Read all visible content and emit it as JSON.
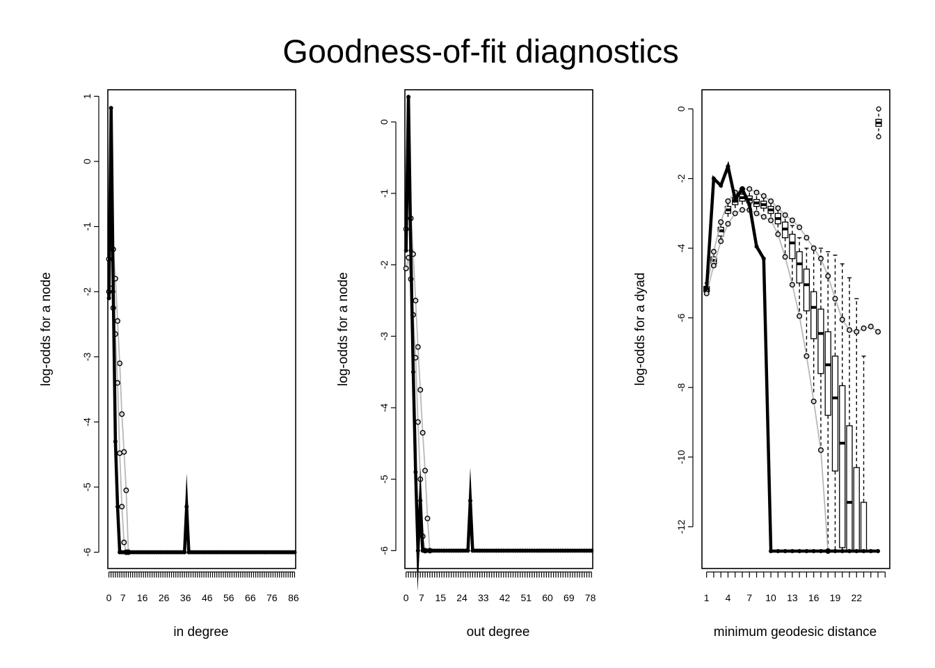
{
  "title": "Goodness-of-fit diagnostics",
  "chart_data": [
    {
      "type": "line",
      "xlabel": "in degree",
      "ylabel": "log-odds for a node",
      "xlim": [
        -0.5,
        86.5
      ],
      "ylim": [
        -6.25,
        1.1
      ],
      "yticks": [
        1,
        0,
        -1,
        -2,
        -3,
        -4,
        -5,
        -6
      ],
      "xticklabels": [
        "0",
        "7",
        "16",
        "26",
        "36",
        "46",
        "56",
        "66",
        "76",
        "86"
      ],
      "xticks_at": [
        0,
        6.5,
        15.5,
        25.5,
        35.5,
        45.5,
        55.5,
        65.5,
        75.5,
        85.5
      ],
      "observed": {
        "x": [
          0,
          1,
          2,
          3,
          4,
          5,
          6,
          7,
          8,
          9,
          10,
          11,
          12,
          13,
          14,
          15,
          16,
          17,
          18,
          19,
          20,
          21,
          22,
          23,
          24,
          25,
          26,
          27,
          28,
          29,
          30,
          31,
          32,
          33,
          34,
          35,
          36,
          37,
          38,
          39,
          40,
          41,
          42,
          43,
          44,
          45,
          46,
          47,
          48,
          49,
          50,
          51,
          52,
          53,
          54,
          55,
          56,
          57,
          58,
          59,
          60,
          61,
          62,
          63,
          64,
          65,
          66,
          67,
          68,
          69,
          70,
          71,
          72,
          73,
          74,
          75,
          76,
          77,
          78,
          79,
          80,
          81,
          82,
          83,
          84,
          85,
          86
        ],
        "y": [
          -2.1,
          0.82,
          -2.0,
          -4.3,
          -5.3,
          -6,
          -6,
          -6,
          -6,
          -6,
          -6,
          -6,
          -6,
          -6,
          -6,
          -6,
          -6,
          -6,
          -6,
          -6,
          -6,
          -6,
          -6,
          -6,
          -6,
          -6,
          -6,
          -6,
          -6,
          -6,
          -6,
          -6,
          -6,
          -6,
          -6,
          -6,
          -5.3,
          -6,
          -6,
          -6,
          -6,
          -6,
          -6,
          -6,
          -6,
          -6,
          -6,
          -6,
          -6,
          -6,
          -6,
          -6,
          -6,
          -6,
          -6,
          -6,
          -6,
          -6,
          -6,
          -6,
          -6,
          -6,
          -6,
          -6,
          -6,
          -6,
          -6,
          -6,
          -6,
          -6,
          -6,
          -6,
          -6,
          -6,
          -6,
          -6,
          -6,
          -6,
          -6,
          -6,
          -6,
          -6,
          -6,
          -6,
          -6,
          -6,
          -6
        ]
      },
      "simulated_upper": {
        "x": [
          0,
          1,
          2,
          3,
          4,
          5,
          6,
          7,
          8,
          9
        ],
        "y": [
          -1.5,
          -1.0,
          -1.35,
          -1.8,
          -2.45,
          -3.1,
          -3.88,
          -4.46,
          -5.05,
          -6
        ]
      },
      "simulated_lower": {
        "x": [
          0,
          1,
          2,
          3,
          4,
          5,
          6,
          7,
          8
        ],
        "y": [
          -2.0,
          -1.95,
          -2.25,
          -2.65,
          -3.4,
          -4.48,
          -5.3,
          -5.85,
          -6
        ]
      }
    },
    {
      "type": "line",
      "xlabel": "out degree",
      "ylabel": "log-odds for a node",
      "xlim": [
        -0.5,
        78.5
      ],
      "ylim": [
        -6.25,
        0.45
      ],
      "yticks": [
        0,
        -1,
        -2,
        -3,
        -4,
        -5,
        -6
      ],
      "xticklabels": [
        "0",
        "7",
        "15",
        "24",
        "33",
        "42",
        "51",
        "60",
        "69",
        "78"
      ],
      "xticks_at": [
        0,
        6.5,
        14.5,
        23.5,
        32.5,
        41.5,
        50.5,
        59.5,
        68.5,
        77.5
      ],
      "observed": {
        "x": [
          0,
          1,
          2,
          3,
          4,
          5,
          6,
          7,
          8,
          9,
          10,
          11,
          12,
          13,
          14,
          15,
          16,
          17,
          18,
          19,
          20,
          21,
          22,
          23,
          24,
          25,
          26,
          27,
          28,
          29,
          30,
          31,
          32,
          33,
          34,
          35,
          36,
          37,
          38,
          39,
          40,
          41,
          42,
          43,
          44,
          45,
          46,
          47,
          48,
          49,
          50,
          51,
          52,
          53,
          54,
          55,
          56,
          57,
          58,
          59,
          60,
          61,
          62,
          63,
          64,
          65,
          66,
          67,
          68,
          69,
          70,
          71,
          72,
          73,
          74,
          75,
          76,
          77,
          78
        ],
        "y": [
          -1.8,
          0.35,
          -1.8,
          -3.5,
          -4.9,
          -6,
          -5.3,
          -6,
          -6,
          -6,
          -6,
          -6,
          -6,
          -6,
          -6,
          -6,
          -6,
          -6,
          -6,
          -6,
          -6,
          -6,
          -6,
          -6,
          -6,
          -6,
          -6,
          -5.3,
          -6,
          -6,
          -6,
          -6,
          -6,
          -6,
          -6,
          -6,
          -6,
          -6,
          -6,
          -6,
          -6,
          -6,
          -6,
          -6,
          -6,
          -6,
          -6,
          -6,
          -6,
          -6,
          -6,
          -6,
          -6,
          -6,
          -6,
          -6,
          -6,
          -6,
          -6,
          -6,
          -6,
          -6,
          -6,
          -6,
          -6,
          -6,
          -6,
          -6,
          -6,
          -6,
          -6,
          -6,
          -6,
          -6,
          -6,
          -6,
          -6,
          -6,
          -6
        ]
      },
      "simulated_upper": {
        "x": [
          0,
          1,
          2,
          3,
          4,
          5,
          6,
          7,
          8,
          9,
          10
        ],
        "y": [
          -1.5,
          -1.0,
          -1.35,
          -1.85,
          -2.5,
          -3.15,
          -3.75,
          -4.35,
          -4.88,
          -5.55,
          -6
        ]
      },
      "simulated_lower": {
        "x": [
          0,
          1,
          2,
          3,
          4,
          5,
          6,
          7,
          8
        ],
        "y": [
          -2.05,
          -1.9,
          -2.2,
          -2.7,
          -3.3,
          -4.2,
          -5.0,
          -5.8,
          -6
        ]
      }
    },
    {
      "type": "line",
      "xlabel": "minimum geodesic distance",
      "ylabel": "log-odds for a dyad",
      "xlim": [
        0.35,
        26.65
      ],
      "ylim": [
        -13.2,
        0.55
      ],
      "yticks": [
        0,
        -2,
        -4,
        -6,
        -8,
        -10,
        -12
      ],
      "xticklabels": [
        "1",
        "4",
        "7",
        "10",
        "13",
        "16",
        "19",
        "22"
      ],
      "xticks_at": [
        1,
        4,
        7,
        10,
        13,
        16,
        19,
        22
      ],
      "observed": {
        "x": [
          1,
          2,
          3,
          4,
          5,
          6,
          7,
          8,
          9,
          10,
          11,
          12,
          13,
          14,
          15,
          16,
          17,
          18,
          19,
          20,
          21,
          22,
          23,
          24,
          25
        ],
        "y": [
          -5.15,
          -2.0,
          -2.2,
          -1.65,
          -2.6,
          -2.3,
          -2.75,
          -3.95,
          -4.3,
          -12.7,
          -12.7,
          -12.7,
          -12.7,
          -12.7,
          -12.7,
          -12.7,
          -12.7,
          -12.7,
          -12.7,
          -12.7,
          -12.7,
          -12.7,
          -12.7,
          -12.7,
          -12.7
        ]
      },
      "boxes": {
        "x": [
          1,
          2,
          3,
          4,
          5,
          6,
          7,
          8,
          9,
          10,
          11,
          12,
          13,
          14,
          15,
          16,
          17,
          18,
          19,
          20,
          21,
          22,
          23,
          24
        ],
        "median": [
          -5.2,
          -4.35,
          -3.5,
          -2.9,
          -2.65,
          -2.55,
          -2.6,
          -2.7,
          -2.75,
          -2.9,
          -3.15,
          -3.45,
          -3.85,
          -4.45,
          -5.05,
          -5.7,
          -6.45,
          -7.35,
          -8.3,
          -9.6,
          -11.3,
          -12.7,
          -12.7,
          -12.7
        ],
        "q1": [
          -5.25,
          -4.45,
          -3.65,
          -3.0,
          -2.75,
          -2.65,
          -2.7,
          -2.8,
          -2.85,
          -3.0,
          -3.3,
          -3.7,
          -4.3,
          -5.0,
          -5.8,
          -6.6,
          -7.6,
          -8.8,
          -10.4,
          -12.6,
          -12.7,
          -12.7,
          -12.7,
          -12.7
        ],
        "q3": [
          -5.1,
          -4.25,
          -3.4,
          -2.8,
          -2.55,
          -2.45,
          -2.5,
          -2.6,
          -2.65,
          -2.8,
          -3.0,
          -3.25,
          -3.6,
          -4.1,
          -4.6,
          -5.25,
          -5.75,
          -6.4,
          -7.1,
          -7.95,
          -9.1,
          -10.3,
          -11.3,
          -12.7
        ],
        "whisker_low": [
          -5.3,
          -4.55,
          -3.8,
          -3.15,
          -2.85,
          -2.75,
          -2.85,
          -2.95,
          -3.05,
          -3.2,
          -3.55,
          -4.2,
          -5.0,
          -5.9,
          -7.0,
          -8.2,
          -9.7,
          -12.7,
          -12.7,
          -12.7,
          -12.7,
          -12.7,
          -12.7,
          -12.7
        ],
        "whisker_high": [
          -5.0,
          -4.1,
          -3.25,
          -2.65,
          -2.4,
          -2.3,
          -2.3,
          -2.4,
          -2.5,
          -2.65,
          -2.85,
          -3.05,
          -3.35,
          -3.7,
          -4.0,
          -4.0,
          -4.0,
          -4.1,
          -4.2,
          -4.45,
          -4.85,
          -5.45,
          -7.1,
          -12.7
        ]
      },
      "simulated_upper": {
        "x": [
          1,
          2,
          3,
          4,
          5,
          6,
          7,
          8,
          9,
          10,
          11,
          12,
          13,
          14,
          15,
          16,
          17,
          18,
          19,
          20,
          21,
          22,
          23,
          24,
          25
        ],
        "y": [
          -5.15,
          -4.1,
          -3.25,
          -2.65,
          -2.4,
          -2.3,
          -2.3,
          -2.4,
          -2.5,
          -2.65,
          -2.85,
          -3.05,
          -3.2,
          -3.4,
          -3.7,
          -4.0,
          -4.3,
          -4.8,
          -5.45,
          -6.05,
          -6.35,
          -6.4,
          -6.3,
          -6.25,
          -6.4
        ]
      },
      "simulated_lower": {
        "x": [
          1,
          2,
          3,
          4,
          5,
          6,
          7,
          8,
          9,
          10,
          11,
          12,
          13,
          14,
          15,
          16,
          17,
          18
        ],
        "y": [
          -5.3,
          -4.5,
          -3.8,
          -3.3,
          -3.0,
          -2.9,
          -2.9,
          -3.0,
          -3.1,
          -3.2,
          -3.6,
          -4.25,
          -5.05,
          -5.95,
          -7.1,
          -8.4,
          -9.8,
          -12.7
        ]
      },
      "infinite_box": {
        "median": -0.4,
        "q1": -0.5,
        "q3": -0.3,
        "whisker_low": -0.8,
        "whisker_high": 0.0
      }
    }
  ]
}
